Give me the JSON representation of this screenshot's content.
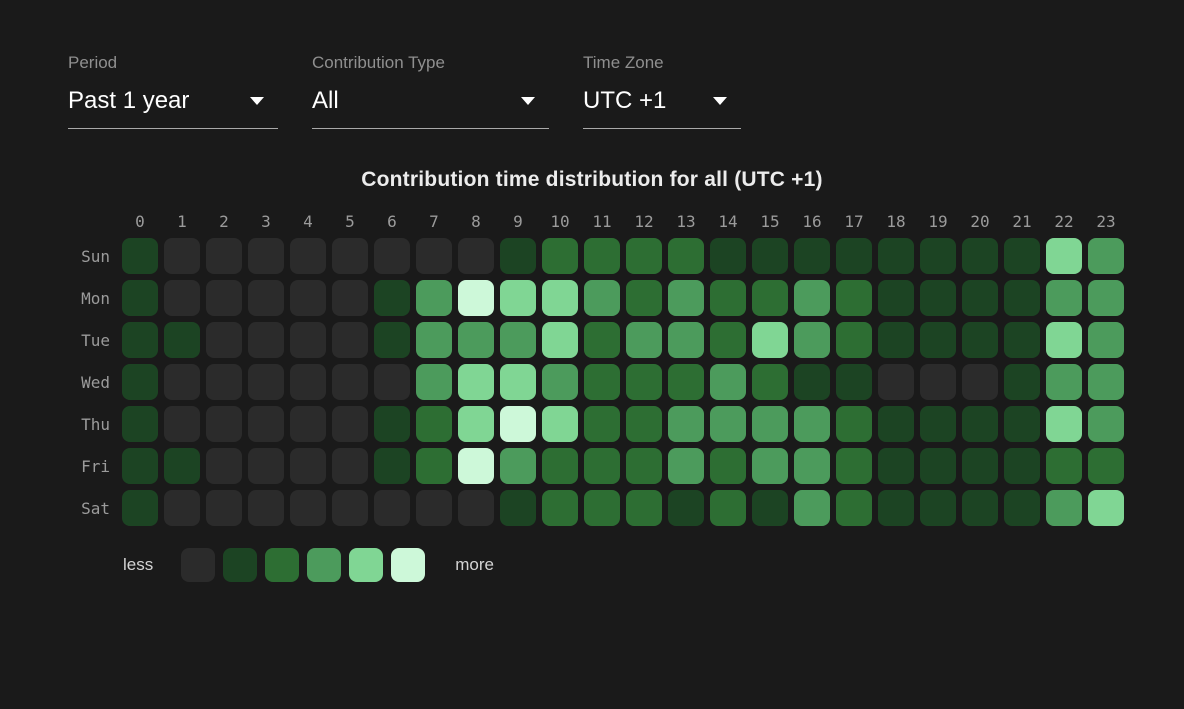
{
  "filters": {
    "period": {
      "label": "Period",
      "value": "Past 1 year"
    },
    "contribution_type": {
      "label": "Contribution Type",
      "value": "All"
    },
    "time_zone": {
      "label": "Time Zone",
      "value": "UTC +1"
    }
  },
  "chart_data": {
    "type": "heatmap",
    "title": "Contribution time distribution for all (UTC +1)",
    "hours": [
      "0",
      "1",
      "2",
      "3",
      "4",
      "5",
      "6",
      "7",
      "8",
      "9",
      "10",
      "11",
      "12",
      "13",
      "14",
      "15",
      "16",
      "17",
      "18",
      "19",
      "20",
      "21",
      "22",
      "23"
    ],
    "days": [
      "Sun",
      "Mon",
      "Tue",
      "Wed",
      "Thu",
      "Fri",
      "Sat"
    ],
    "values": [
      [
        1,
        0,
        0,
        0,
        0,
        0,
        0,
        0,
        0,
        1,
        2,
        2,
        2,
        2,
        1,
        1,
        1,
        1,
        1,
        1,
        1,
        1,
        4,
        3
      ],
      [
        1,
        0,
        0,
        0,
        0,
        0,
        1,
        3,
        5,
        4,
        4,
        3,
        2,
        3,
        2,
        2,
        3,
        2,
        1,
        1,
        1,
        1,
        3,
        3
      ],
      [
        1,
        1,
        0,
        0,
        0,
        0,
        1,
        3,
        3,
        3,
        4,
        2,
        3,
        3,
        2,
        4,
        3,
        2,
        1,
        1,
        1,
        1,
        4,
        3
      ],
      [
        1,
        0,
        0,
        0,
        0,
        0,
        0,
        3,
        4,
        4,
        3,
        2,
        2,
        2,
        3,
        2,
        1,
        1,
        0,
        0,
        0,
        1,
        3,
        3
      ],
      [
        1,
        0,
        0,
        0,
        0,
        0,
        1,
        2,
        4,
        5,
        4,
        2,
        2,
        3,
        3,
        3,
        3,
        2,
        1,
        1,
        1,
        1,
        4,
        3
      ],
      [
        1,
        1,
        0,
        0,
        0,
        0,
        1,
        2,
        5,
        3,
        2,
        2,
        2,
        3,
        2,
        3,
        3,
        2,
        1,
        1,
        1,
        1,
        2,
        2
      ],
      [
        1,
        0,
        0,
        0,
        0,
        0,
        0,
        0,
        0,
        1,
        2,
        2,
        2,
        1,
        2,
        1,
        3,
        2,
        1,
        1,
        1,
        1,
        3,
        4
      ]
    ],
    "level_colors": [
      "#2b2b2b",
      "#1c4423",
      "#2d6e33",
      "#4c9b5c",
      "#80d694",
      "#cdf8d9"
    ],
    "legend": {
      "less_label": "less",
      "more_label": "more"
    }
  },
  "theme": {
    "background": "#1a1a1a",
    "filter_label_color": "#8f8f8f",
    "axis_label_color": "#9b9b9b",
    "title_color": "#ececec",
    "underline_color": "#a9a9a9",
    "legend_text_color": "#d4d4d4",
    "value_text_color": "#ffffff"
  }
}
